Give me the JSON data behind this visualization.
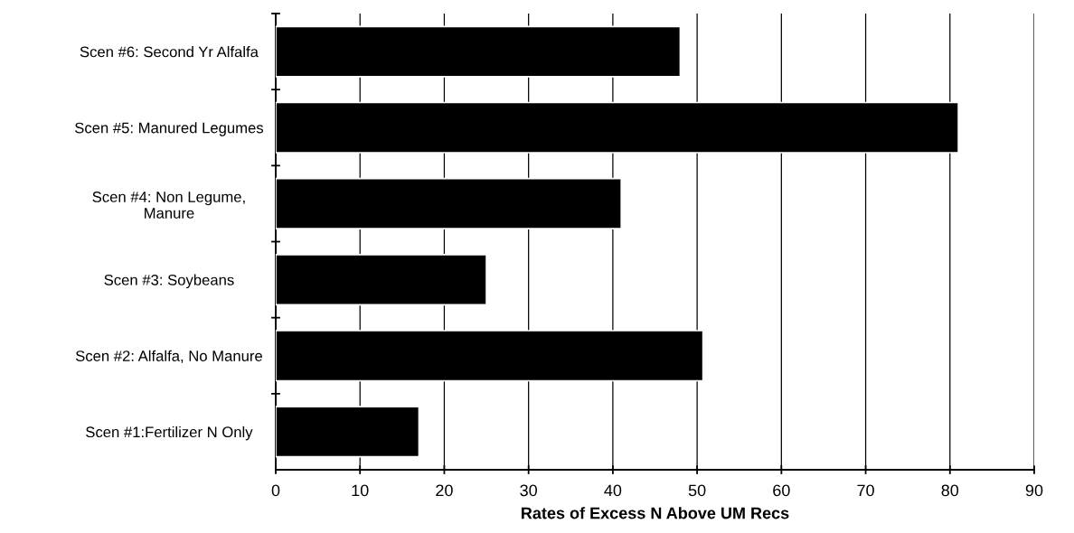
{
  "chart_data": {
    "type": "bar",
    "orientation": "horizontal",
    "xlabel": "Rates of Excess N Above UM Recs",
    "categories": [
      "Scen #6: Second Yr Alfalfa",
      "Scen #5: Manured Legumes",
      "Scen #4: Non Legume,\nManure",
      "Scen #3: Soybeans",
      "Scen #2: Alfalfa, No Manure",
      "Scen #1:Fertilizer N Only"
    ],
    "values": [
      48,
      81,
      41,
      25,
      50.7,
      17
    ],
    "color": "#000000",
    "xlim": [
      0,
      90
    ],
    "xticks": [
      0,
      10,
      20,
      30,
      40,
      50,
      60,
      70,
      80,
      90
    ],
    "grid": "x",
    "legend": false
  }
}
